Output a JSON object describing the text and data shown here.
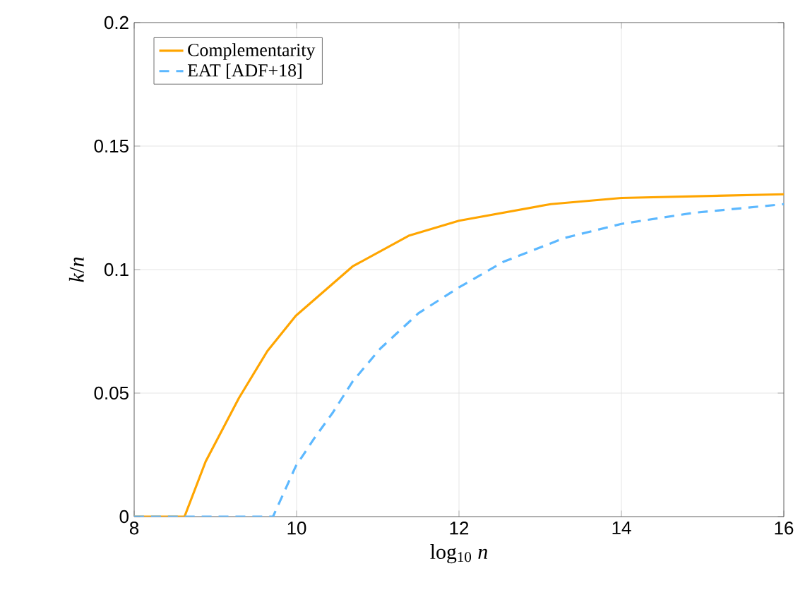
{
  "chart_data": {
    "type": "line",
    "xlabel": "log$_{10}$ *n*",
    "ylabel": "*k*/*n*",
    "xlim": [
      8,
      16
    ],
    "ylim": [
      0,
      0.2
    ],
    "xticks": [
      8,
      10,
      12,
      14,
      16
    ],
    "yticks": [
      0,
      0.05,
      0.1,
      0.15,
      0.2
    ],
    "grid": true,
    "legend": "top left",
    "series": [
      {
        "name": "Complementarity",
        "color": "#ffa500",
        "line_style": "solid",
        "x": [
          8,
          8.62,
          8.88,
          9.29,
          9.64,
          9.99,
          10.69,
          11.38,
          12.0,
          13.13,
          14.0,
          16
        ],
        "values": [
          0,
          0,
          0.0223,
          0.048,
          0.067,
          0.0813,
          0.1013,
          0.1137,
          0.1198,
          0.1265,
          0.129,
          0.1305
        ]
      },
      {
        "name": "EAT [ADF+18]",
        "color": "#5cb8ff",
        "line_style": "dashed",
        "x": [
          8,
          9.71,
          9.99,
          10.22,
          10.45,
          10.69,
          11.03,
          11.5,
          12.0,
          12.55,
          13.3,
          14.0,
          14.87,
          16
        ],
        "values": [
          0,
          0,
          0.0204,
          0.0318,
          0.0423,
          0.0547,
          0.068,
          0.0823,
          0.0928,
          0.1032,
          0.1128,
          0.1185,
          0.1229,
          0.1265
        ]
      }
    ]
  }
}
